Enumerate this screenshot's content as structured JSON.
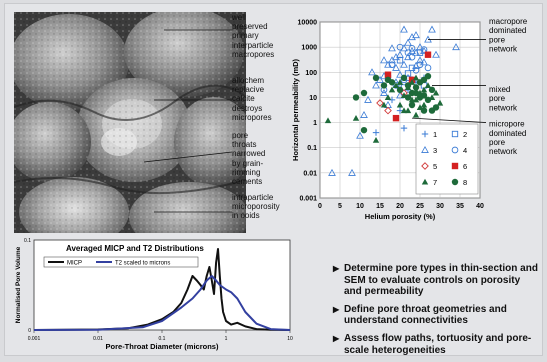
{
  "sem_labels": [
    "well\npreserved\nprimary\ninterparticle\nmacropores",
    "allochem\nreplacive\ncalcite\ndestroys\nmicropores",
    "pore\nthroats\nnarrowed\nby grain-\nrimming\ncements",
    "intraparticle\nmicroporosity\nin ooids"
  ],
  "scatter_labels": [
    "macropore\ndominated\npore\nnetwork",
    "mixed\npore\nnetwork",
    "micropore\ndominated\npore\nnetwork"
  ],
  "bullets": [
    "Determine pore types in thin-section and SEM to evaluate controls on porosity and permeability",
    "Define pore throat geometries and understand connectivities",
    "Assess flow paths, tortuosity and pore-scale heterogeneities"
  ],
  "chart_data": [
    {
      "type": "scatter",
      "xlabel": "Helium porosity (%)",
      "ylabel": "Horizontal permeability (mD)",
      "xlim": [
        0,
        40
      ],
      "ylim": [
        0.001,
        10000
      ],
      "yscale": "log",
      "xticks": [
        "0",
        "5",
        "10",
        "15",
        "20",
        "25",
        "30",
        "35",
        "40"
      ],
      "yticks": [
        "0.001",
        "0.01",
        "0.1",
        "1",
        "10",
        "100",
        "1000",
        "10000"
      ],
      "legend_position": "bottom-right",
      "series": [
        {
          "name": "1",
          "marker": "plus",
          "color": "#3a7bd5",
          "points": [
            [
              14,
              0.4
            ],
            [
              20,
              3
            ],
            [
              22,
              20
            ],
            [
              24,
              40
            ],
            [
              26,
              60
            ],
            [
              18,
              8
            ],
            [
              21,
              0.6
            ]
          ]
        },
        {
          "name": "2",
          "marker": "square-open",
          "color": "#3a7bd5",
          "points": [
            [
              20,
              300
            ],
            [
              23,
              150
            ],
            [
              25,
              600
            ],
            [
              17,
              60
            ],
            [
              22,
              90
            ],
            [
              26,
              30
            ],
            [
              21,
              25
            ]
          ]
        },
        {
          "name": "3",
          "marker": "triangle-open",
          "color": "#3a7bd5",
          "points": [
            [
              3,
              0.01
            ],
            [
              8,
              0.01
            ],
            [
              10,
              0.3
            ],
            [
              12,
              8
            ],
            [
              14,
              30
            ],
            [
              15,
              50
            ],
            [
              16,
              70
            ],
            [
              17,
              200
            ],
            [
              18,
              300
            ],
            [
              19,
              400
            ],
            [
              20,
              500
            ],
            [
              21,
              900
            ],
            [
              22,
              1500
            ],
            [
              23,
              2500
            ],
            [
              24,
              3000
            ],
            [
              25,
              1000
            ],
            [
              26,
              700
            ],
            [
              27,
              2000
            ],
            [
              18,
              900
            ],
            [
              19,
              150
            ],
            [
              20,
              80
            ],
            [
              22,
              400
            ],
            [
              23,
              700
            ],
            [
              24,
              600
            ],
            [
              25,
              300
            ],
            [
              19,
              40
            ],
            [
              21,
              200
            ],
            [
              22,
              60
            ],
            [
              16,
              15
            ],
            [
              17,
              5
            ],
            [
              20,
              12
            ],
            [
              23,
              50
            ],
            [
              24,
              180
            ],
            [
              26,
              250
            ],
            [
              28,
              5000
            ],
            [
              34,
              1000
            ],
            [
              29,
              500
            ],
            [
              21,
              5000
            ],
            [
              13,
              100
            ],
            [
              16,
              300
            ],
            [
              11,
              2
            ]
          ]
        },
        {
          "name": "4",
          "marker": "circle-open",
          "color": "#3a7bd5",
          "points": [
            [
              20,
              1000
            ],
            [
              23,
              400
            ],
            [
              25,
              200
            ],
            [
              18,
              200
            ],
            [
              22,
              600
            ],
            [
              26,
              800
            ],
            [
              24,
              120
            ],
            [
              21,
              50
            ],
            [
              19,
              30
            ],
            [
              16,
              20
            ],
            [
              23,
              900
            ],
            [
              27,
              150
            ]
          ]
        },
        {
          "name": "5",
          "marker": "diamond-open",
          "color": "#d23a3a",
          "points": [
            [
              15,
              6
            ],
            [
              17,
              3
            ],
            [
              21,
              15
            ]
          ]
        },
        {
          "name": "6",
          "marker": "square-filled",
          "color": "#d42020",
          "points": [
            [
              17,
              80
            ],
            [
              19,
              1.5
            ],
            [
              27,
              500
            ],
            [
              23,
              50
            ]
          ]
        },
        {
          "name": "7",
          "marker": "triangle-filled",
          "color": "#1e6a3a",
          "points": [
            [
              2,
              1.2
            ],
            [
              9,
              1.5
            ],
            [
              14,
              0.2
            ],
            [
              16,
              5
            ],
            [
              17,
              10
            ],
            [
              18,
              20
            ],
            [
              19,
              30
            ],
            [
              20,
              5
            ],
            [
              21,
              12
            ],
            [
              22,
              25
            ],
            [
              23,
              40
            ],
            [
              24,
              8
            ],
            [
              25,
              15
            ],
            [
              26,
              20
            ],
            [
              27,
              30
            ],
            [
              28,
              10
            ],
            [
              29,
              15
            ],
            [
              30,
              6
            ],
            [
              22,
              3
            ],
            [
              23,
              8
            ],
            [
              25,
              4
            ],
            [
              26,
              5
            ],
            [
              24,
              60
            ],
            [
              20,
              40
            ],
            [
              21,
              3
            ],
            [
              24,
              2
            ]
          ]
        },
        {
          "name": "8",
          "marker": "circle-filled",
          "color": "#1e6a3a",
          "points": [
            [
              11,
              0.5
            ],
            [
              11,
              15
            ],
            [
              16,
              30
            ],
            [
              17,
              50
            ],
            [
              18,
              40
            ],
            [
              20,
              20
            ],
            [
              21,
              60
            ],
            [
              22,
              10
            ],
            [
              23,
              15
            ],
            [
              24,
              25
            ],
            [
              25,
              40
            ],
            [
              26,
              12
            ],
            [
              27,
              8
            ],
            [
              28,
              20
            ],
            [
              22,
              30
            ],
            [
              23,
              5
            ],
            [
              25,
              10
            ],
            [
              24,
              15
            ],
            [
              26,
              50
            ],
            [
              27,
              70
            ],
            [
              29,
              4
            ],
            [
              28,
              3
            ],
            [
              9,
              10
            ],
            [
              14,
              60
            ],
            [
              26,
              3
            ]
          ]
        }
      ]
    },
    {
      "type": "line",
      "title": "Averaged MICP and T2 Distributions",
      "xlabel": "Pore-Throat Diameter (microns)",
      "ylabel": "Normalised Pore Volume",
      "xscale": "log",
      "xlim": [
        0.001,
        10
      ],
      "ylim": [
        0,
        0.1
      ],
      "xticks": [
        "0.001",
        "0.01",
        "0.1",
        "1",
        "10"
      ],
      "yticks": [
        "0",
        "0.1"
      ],
      "legend_position": "top-left",
      "series": [
        {
          "name": "MICP",
          "color": "#111111",
          "x": [
            0.001,
            0.01,
            0.03,
            0.06,
            0.1,
            0.15,
            0.2,
            0.25,
            0.3,
            0.35,
            0.4,
            0.45,
            0.5,
            0.55,
            0.6,
            0.65,
            0.7,
            0.75,
            0.8,
            0.85,
            0.9,
            1.0,
            1.2,
            1.5,
            2,
            3,
            5,
            10
          ],
          "y": [
            0,
            0.0005,
            0.002,
            0.006,
            0.012,
            0.02,
            0.03,
            0.045,
            0.06,
            0.055,
            0.05,
            0.045,
            0.06,
            0.07,
            0.055,
            0.04,
            0.075,
            0.09,
            0.06,
            0.035,
            0.02,
            0.01,
            0.006,
            0.008,
            0.004,
            0.001,
            0.0003,
            0
          ]
        },
        {
          "name": "T2 scaled to microns",
          "color": "#3340a0",
          "x": [
            0.001,
            0.01,
            0.05,
            0.1,
            0.2,
            0.3,
            0.4,
            0.5,
            0.6,
            0.7,
            0.8,
            1.0,
            1.2,
            1.5,
            2,
            3,
            5,
            10
          ],
          "y": [
            0,
            0.0003,
            0.003,
            0.01,
            0.025,
            0.035,
            0.045,
            0.055,
            0.06,
            0.055,
            0.05,
            0.045,
            0.042,
            0.035,
            0.02,
            0.007,
            0.001,
            0
          ]
        }
      ]
    }
  ]
}
